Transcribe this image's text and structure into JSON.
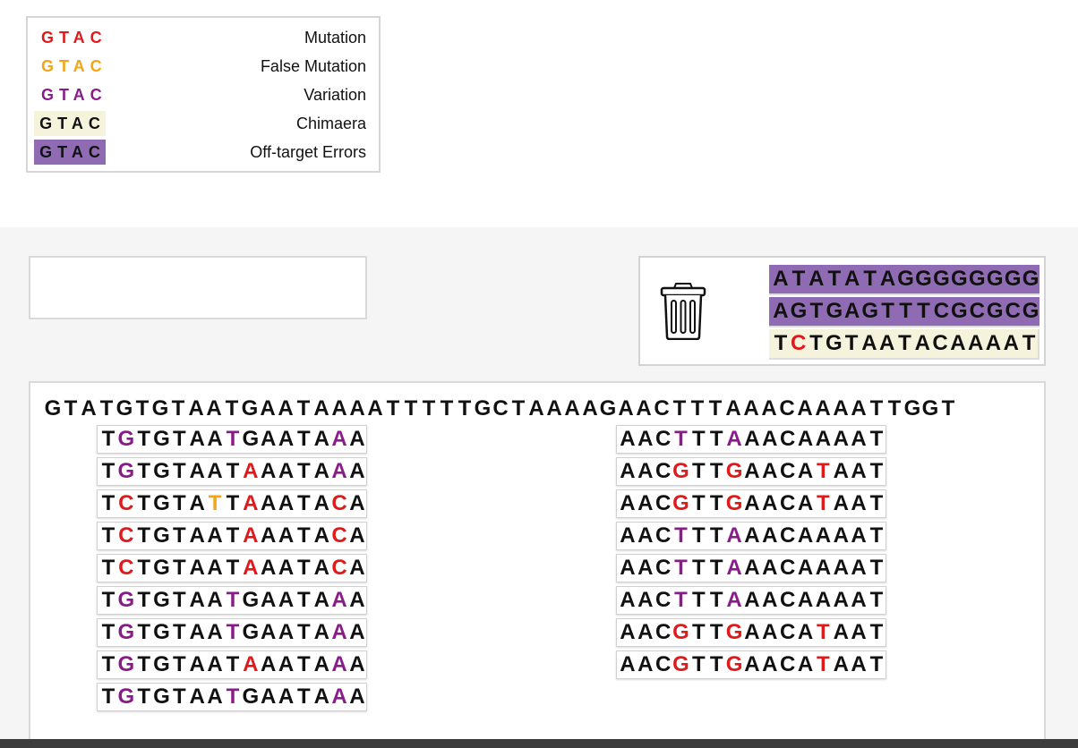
{
  "legend": {
    "items": [
      {
        "swatch": "GTAC",
        "label": "Mutation",
        "text_color": "#e0191a",
        "bg": "#ffffff"
      },
      {
        "swatch": "GTAC",
        "label": "False Mutation",
        "text_color": "#f4a514",
        "bg": "#ffffff"
      },
      {
        "swatch": "GTAC",
        "label": "Variation",
        "text_color": "#8a1c8a",
        "bg": "#ffffff"
      },
      {
        "swatch": "GTAC",
        "label": "Chimaera",
        "text_color": "#111111",
        "bg": "#f5f3dc"
      },
      {
        "swatch": "GTAC",
        "label": "Off-target Errors",
        "text_color": "#111111",
        "bg": "#8f6bb4"
      }
    ]
  },
  "trash": {
    "icon": "trash-can-icon",
    "sequences": [
      {
        "seq": "ATATATAGGGGGGGG",
        "type": "off-target",
        "marks": {}
      },
      {
        "seq": "AGTGAGTTTCGCGCG",
        "type": "off-target",
        "marks": {}
      },
      {
        "seq": "TCTGTAATACAAAAT",
        "type": "chimaera",
        "marks": {
          "1": "mut"
        }
      }
    ]
  },
  "reference": "GTATGTGTAATGAATAAAATTTTTGCTAAAAGAACTTTAAACAAAATTGGT",
  "reads_left": [
    {
      "seq": "TGTGTAATGAATAAA",
      "marks": {
        "1": "var",
        "7": "var",
        "13": "var"
      }
    },
    {
      "seq": "TGTGTAATAAATAAA",
      "marks": {
        "1": "var",
        "8": "mut",
        "13": "var"
      }
    },
    {
      "seq": "TCTGTATTAAATACA",
      "marks": {
        "1": "mut",
        "6": "false",
        "8": "mut",
        "13": "mut"
      }
    },
    {
      "seq": "TCTGTAATAAATACA",
      "marks": {
        "1": "mut",
        "8": "mut",
        "13": "mut"
      }
    },
    {
      "seq": "TCTGTAATAAATACA",
      "marks": {
        "1": "mut",
        "8": "mut",
        "13": "mut"
      }
    },
    {
      "seq": "TGTGTAATGAATAAA",
      "marks": {
        "1": "var",
        "7": "var",
        "13": "var"
      }
    },
    {
      "seq": "TGTGTAATGAATAAA",
      "marks": {
        "1": "var",
        "7": "var",
        "13": "var"
      }
    },
    {
      "seq": "TGTGTAATAAATAAA",
      "marks": {
        "1": "var",
        "8": "mut",
        "13": "var"
      }
    },
    {
      "seq": "TGTGTAATGAATAAA",
      "marks": {
        "1": "var",
        "7": "var",
        "13": "var"
      }
    }
  ],
  "reads_right": [
    {
      "seq": "AACTTTAAACAAAAT",
      "marks": {
        "3": "var",
        "6": "var"
      }
    },
    {
      "seq": "AACGTTGAACATAAT",
      "marks": {
        "3": "mut",
        "6": "mut",
        "11": "mut"
      }
    },
    {
      "seq": "AACGTTGAACATAAT",
      "marks": {
        "3": "mut",
        "6": "mut",
        "11": "mut"
      }
    },
    {
      "seq": "AACTTTAAACAAAAT",
      "marks": {
        "3": "var",
        "6": "var"
      }
    },
    {
      "seq": "AACTTTAAACAAAAT",
      "marks": {
        "3": "var",
        "6": "var"
      }
    },
    {
      "seq": "AACTTTAAACAAAAT",
      "marks": {
        "3": "var",
        "6": "var"
      }
    },
    {
      "seq": "AACGTTGAACATAAT",
      "marks": {
        "3": "mut",
        "6": "mut",
        "11": "mut"
      }
    },
    {
      "seq": "AACGTTGAACATAAT",
      "marks": {
        "3": "mut",
        "6": "mut",
        "11": "mut"
      }
    }
  ]
}
